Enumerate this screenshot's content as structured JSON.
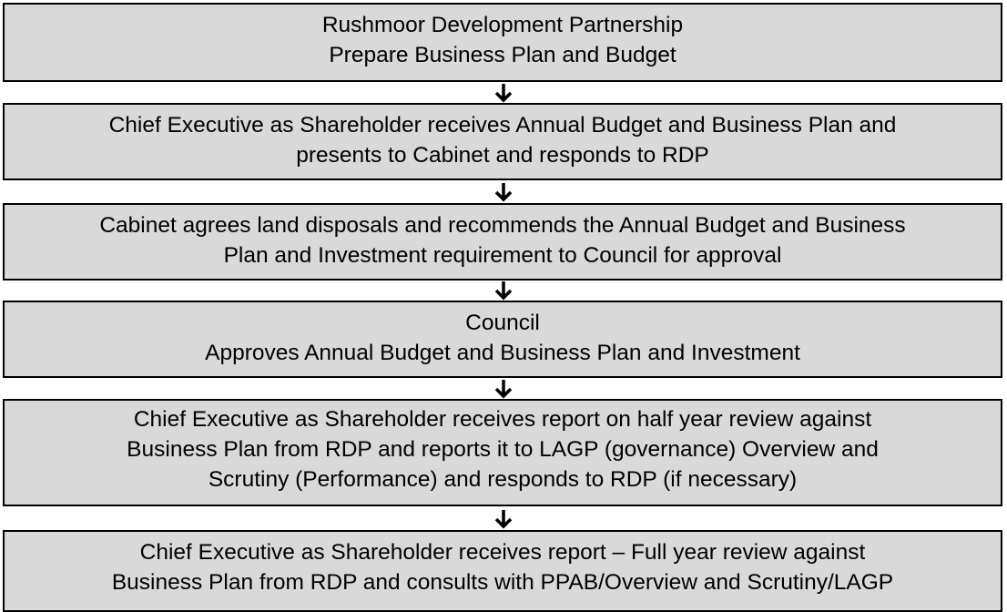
{
  "nodes": [
    {
      "lines": [
        "Rushmoor Development Partnership",
        "Prepare Business Plan and Budget"
      ]
    },
    {
      "lines": [
        "Chief Executive as Shareholder receives Annual Budget and Business Plan and",
        "presents to Cabinet and responds to RDP"
      ]
    },
    {
      "lines": [
        "Cabinet agrees land disposals and recommends the Annual Budget and Business",
        "Plan and Investment requirement to Council for approval"
      ]
    },
    {
      "lines": [
        "Council",
        "Approves Annual Budget and Business Plan and Investment"
      ]
    },
    {
      "lines": [
        "Chief Executive as Shareholder receives report on half year review against",
        "Business Plan from RDP and reports it to LAGP (governance) Overview and",
        "Scrutiny (Performance) and responds to RDP (if necessary)"
      ]
    },
    {
      "lines": [
        "Chief Executive as Shareholder receives report – Full year review against",
        "Business Plan from RDP and consults with PPAB/Overview and Scrutiny/LAGP"
      ]
    }
  ]
}
